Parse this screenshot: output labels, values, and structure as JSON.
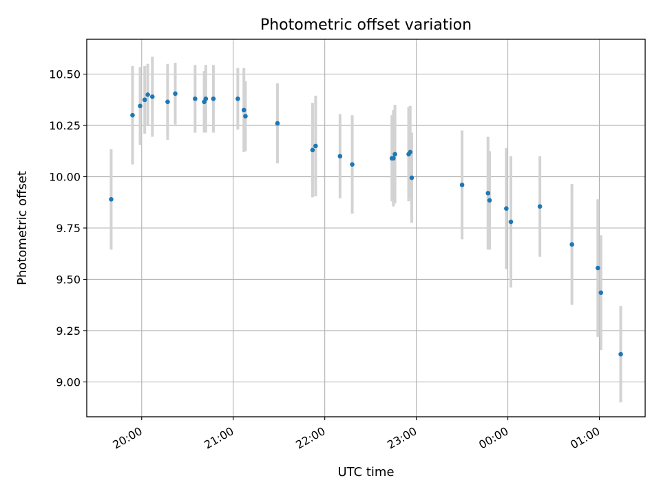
{
  "chart_data": {
    "type": "scatter",
    "title": "Photometric offset variation",
    "xlabel": "UTC time",
    "ylabel": "Photometric offset",
    "xlim": [
      "19:24",
      "01:30"
    ],
    "ylim": [
      8.83,
      10.67
    ],
    "x_tick_labels": [
      "20:00",
      "21:00",
      "22:00",
      "23:00",
      "00:00",
      "01:00"
    ],
    "y_tick_labels": [
      "9.00",
      "9.25",
      "9.50",
      "9.75",
      "10.00",
      "10.25",
      "10.50"
    ],
    "grid": true,
    "series": [
      {
        "color": "#1f77b4",
        "errorbar_color": "#d3d3d3",
        "points": [
          {
            "x": "19:40",
            "y": 9.89,
            "err": 0.245
          },
          {
            "x": "19:54",
            "y": 10.3,
            "err": 0.24
          },
          {
            "x": "19:59",
            "y": 10.345,
            "err": 0.19
          },
          {
            "x": "20:02",
            "y": 10.375,
            "err": 0.165
          },
          {
            "x": "20:04",
            "y": 10.4,
            "err": 0.15
          },
          {
            "x": "20:07",
            "y": 10.39,
            "err": 0.195
          },
          {
            "x": "20:17",
            "y": 10.365,
            "err": 0.185
          },
          {
            "x": "20:22",
            "y": 10.405,
            "err": 0.15
          },
          {
            "x": "20:35",
            "y": 10.38,
            "err": 0.165
          },
          {
            "x": "20:41",
            "y": 10.365,
            "err": 0.15
          },
          {
            "x": "20:42",
            "y": 10.38,
            "err": 0.165
          },
          {
            "x": "20:47",
            "y": 10.38,
            "err": 0.165
          },
          {
            "x": "21:03",
            "y": 10.38,
            "err": 0.15
          },
          {
            "x": "21:07",
            "y": 10.325,
            "err": 0.205
          },
          {
            "x": "21:08",
            "y": 10.295,
            "err": 0.17
          },
          {
            "x": "21:29",
            "y": 10.26,
            "err": 0.195
          },
          {
            "x": "21:52",
            "y": 10.13,
            "err": 0.23
          },
          {
            "x": "21:54",
            "y": 10.15,
            "err": 0.245
          },
          {
            "x": "22:10",
            "y": 10.1,
            "err": 0.205
          },
          {
            "x": "22:18",
            "y": 10.06,
            "err": 0.24
          },
          {
            "x": "22:44",
            "y": 10.09,
            "err": 0.21
          },
          {
            "x": "22:45",
            "y": 10.09,
            "err": 0.235
          },
          {
            "x": "22:46",
            "y": 10.11,
            "err": 0.24
          },
          {
            "x": "22:55",
            "y": 10.11,
            "err": 0.23
          },
          {
            "x": "22:56",
            "y": 10.12,
            "err": 0.225
          },
          {
            "x": "22:57",
            "y": 9.995,
            "err": 0.22
          },
          {
            "x": "23:30",
            "y": 9.96,
            "err": 0.265
          },
          {
            "x": "23:47",
            "y": 9.92,
            "err": 0.275
          },
          {
            "x": "23:48",
            "y": 9.885,
            "err": 0.24
          },
          {
            "x": "23:59",
            "y": 9.845,
            "err": 0.295
          },
          {
            "x": "00:02",
            "y": 9.78,
            "err": 0.32
          },
          {
            "x": "00:21",
            "y": 9.855,
            "err": 0.245
          },
          {
            "x": "00:42",
            "y": 9.67,
            "err": 0.295
          },
          {
            "x": "00:59",
            "y": 9.555,
            "err": 0.335
          },
          {
            "x": "01:01",
            "y": 9.435,
            "err": 0.28
          },
          {
            "x": "01:14",
            "y": 9.135,
            "err": 0.235
          }
        ]
      }
    ]
  }
}
